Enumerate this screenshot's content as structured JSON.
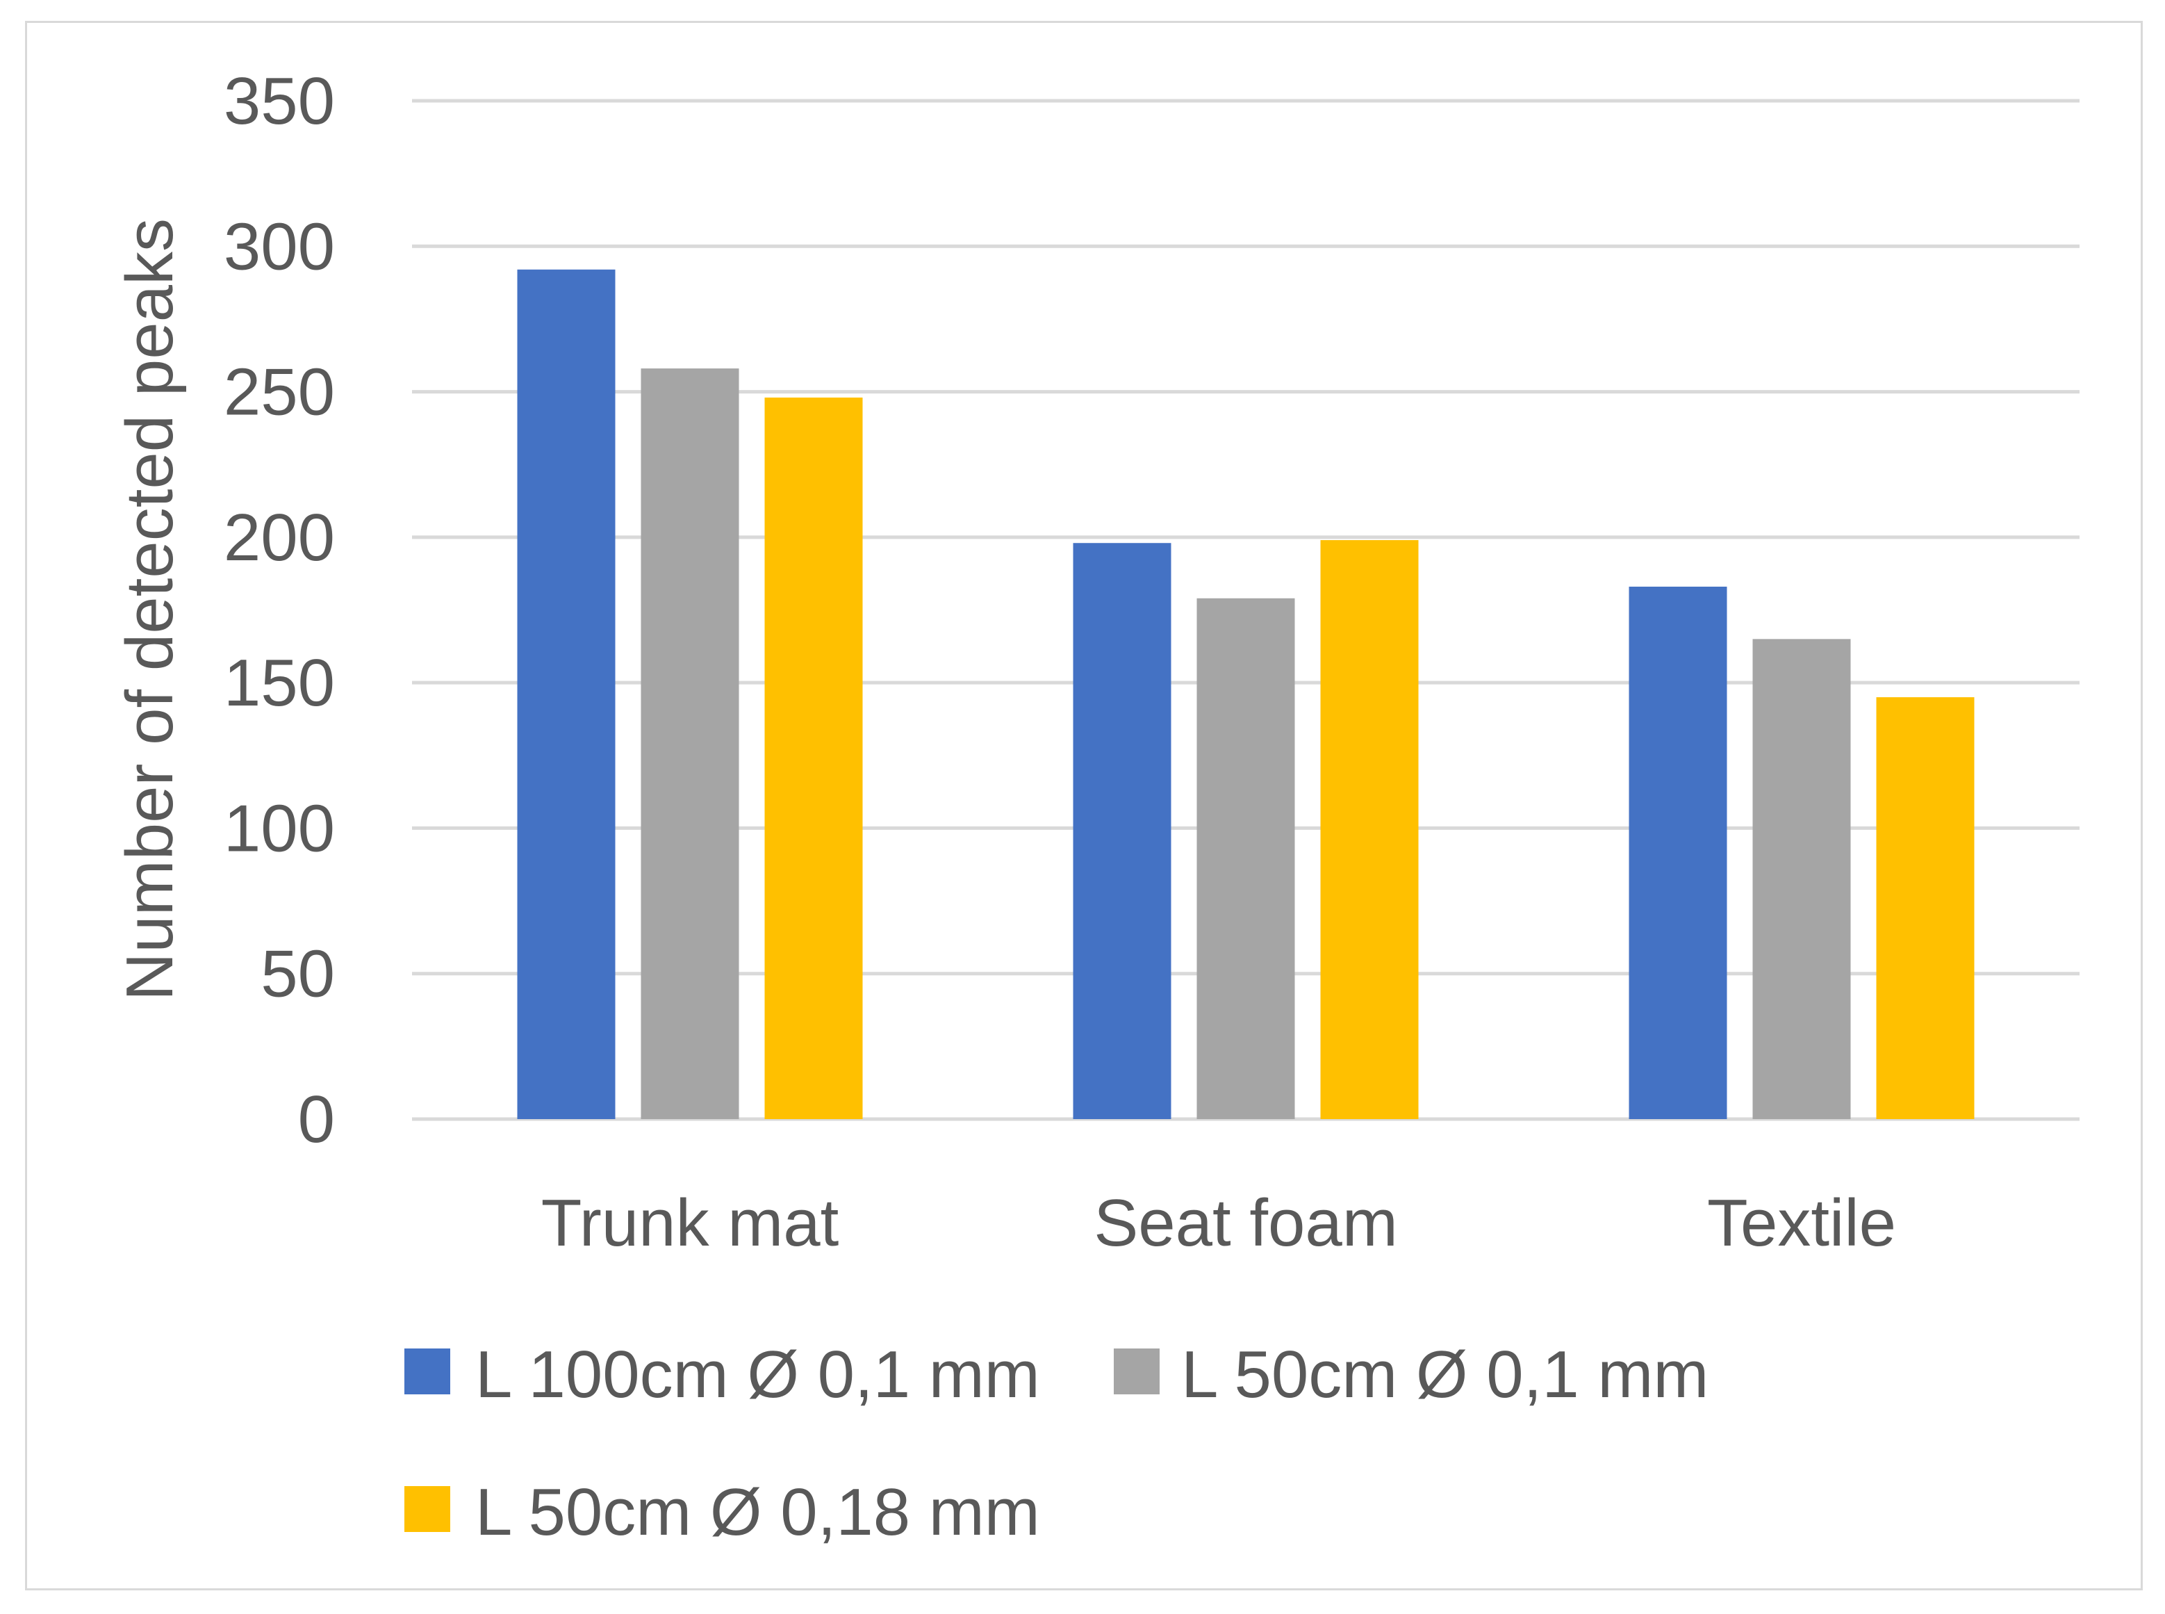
{
  "chart_data": {
    "type": "bar",
    "title": "",
    "xlabel": "",
    "ylabel": "Number of detected peaks",
    "ylim": [
      0,
      350
    ],
    "yticks": [
      0,
      50,
      100,
      150,
      200,
      250,
      300,
      350
    ],
    "grid": true,
    "legend_position": "bottom",
    "categories": [
      "Trunk mat",
      "Seat foam",
      "Textile"
    ],
    "series": [
      {
        "name": "L 100cm Ø 0,1 mm",
        "color": "#4472c4",
        "values": [
          292,
          198,
          183
        ]
      },
      {
        "name": "L 50cm Ø 0,1 mm",
        "color": "#a5a5a5",
        "values": [
          258,
          179,
          165
        ]
      },
      {
        "name": "L 50cm Ø 0,18 mm",
        "color": "#ffc000",
        "values": [
          248,
          199,
          145
        ]
      }
    ]
  }
}
